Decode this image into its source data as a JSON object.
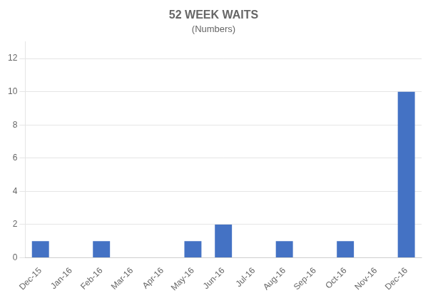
{
  "chart_data": {
    "type": "bar",
    "title": "52 WEEK WAITS",
    "subtitle": "(Numbers)",
    "categories": [
      "Dec-15",
      "Jan-16",
      "Feb-16",
      "Mar-16",
      "Apr-16",
      "May-16",
      "Jun-16",
      "Jul-16",
      "Aug-16",
      "Sep-16",
      "Oct-16",
      "Nov-16",
      "Dec-16"
    ],
    "values": [
      1,
      0,
      1,
      0,
      0,
      1,
      2,
      0,
      1,
      0,
      1,
      0,
      10
    ],
    "color": "#4472c4",
    "ylim": [
      0,
      13
    ],
    "yticks": [
      0,
      2,
      4,
      6,
      8,
      10,
      12
    ],
    "grid": true
  }
}
